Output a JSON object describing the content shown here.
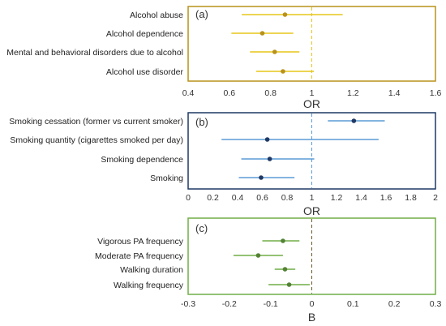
{
  "chart_data": [
    {
      "type": "forest",
      "panel_label": "(a)",
      "xlabel": "OR",
      "xlim": [
        0.4,
        1.6
      ],
      "xticks": [
        "0.4",
        "0.6",
        "0.8",
        "1",
        "1.2",
        "1.4",
        "1.6"
      ],
      "reference_line": 1,
      "color": "#e6c619",
      "frame_color": "#b8921a",
      "marker_color": "#b8921a",
      "categories": [
        "Alcohol abuse",
        "Alcohol dependence",
        "Mental and behavioral disorders due to alcohol",
        "Alcohol use disorder"
      ],
      "estimates": [
        0.87,
        0.76,
        0.82,
        0.86
      ],
      "ci_lower": [
        0.66,
        0.61,
        0.7,
        0.73
      ],
      "ci_upper": [
        1.15,
        0.91,
        0.94,
        1.01
      ]
    },
    {
      "type": "forest",
      "panel_label": "(b)",
      "xlabel": "OR",
      "xlim": [
        0,
        2
      ],
      "xticks": [
        "0",
        "0.2",
        "0.4",
        "0.6",
        "0.8",
        "1",
        "1.2",
        "1.4",
        "1.6",
        "1.8",
        "2"
      ],
      "reference_line": 1,
      "color": "#5b9bd5",
      "frame_color": "#1f3864",
      "marker_color": "#1f3864",
      "categories": [
        "Smoking cessation (former vs current smoker)",
        "Smoking quantity (cigarettes smoked per day)",
        "Smoking dependence",
        "Smoking"
      ],
      "estimates": [
        1.34,
        0.64,
        0.66,
        0.59
      ],
      "ci_lower": [
        1.13,
        0.27,
        0.43,
        0.41
      ],
      "ci_upper": [
        1.59,
        1.54,
        1.02,
        0.86
      ]
    },
    {
      "type": "forest",
      "panel_label": "(c)",
      "xlabel": "B",
      "xlim": [
        -0.3,
        0.3
      ],
      "xticks": [
        "-0.3",
        "-0.2",
        "-0.1",
        "0",
        "0.1",
        "0.2",
        "0.3"
      ],
      "reference_line": 0,
      "color": "#70ad47",
      "frame_color": "#70ad47",
      "marker_color": "#548235",
      "categories": [
        "Vigorous PA frequency",
        "Moderate PA frequency",
        "Walking duration",
        "Walking frequency"
      ],
      "estimates": [
        -0.07,
        -0.13,
        -0.065,
        -0.055
      ],
      "ci_lower": [
        -0.12,
        -0.19,
        -0.09,
        -0.105
      ],
      "ci_upper": [
        -0.03,
        -0.07,
        -0.04,
        -0.005
      ]
    }
  ]
}
